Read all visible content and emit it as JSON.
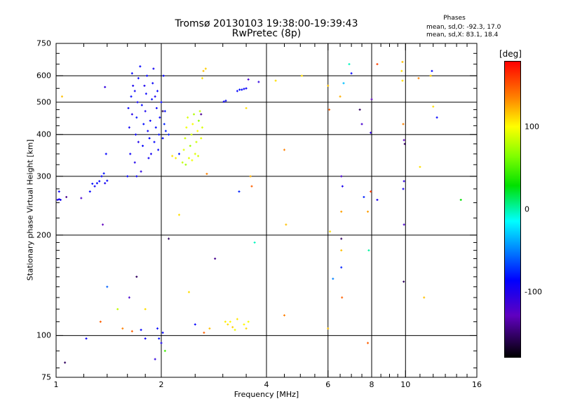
{
  "chart_data": {
    "type": "scatter",
    "title": "Tromsø 20130103 19:38:00-19:39:43",
    "subtitle": "RwPretec (8p)",
    "xlabel": "Frequency [MHz]",
    "ylabel": "Stationary phase Virtual Height [km]",
    "x_scale": "log",
    "y_scale": "log",
    "xlim": [
      1,
      16
    ],
    "ylim": [
      75,
      750
    ],
    "x_ticks": [
      {
        "value": 1,
        "label": "1"
      },
      {
        "value": 2,
        "label": "2"
      },
      {
        "value": 4,
        "label": "4"
      },
      {
        "value": 6,
        "label": "6"
      },
      {
        "value": 8,
        "label": "8"
      },
      {
        "value": 10,
        "label": "10"
      },
      {
        "value": 16,
        "label": "16"
      }
    ],
    "y_ticks": [
      {
        "value": 75,
        "label": "75"
      },
      {
        "value": 100,
        "label": "100"
      },
      {
        "value": 200,
        "label": "200"
      },
      {
        "value": 300,
        "label": "300"
      },
      {
        "value": 400,
        "label": "400"
      },
      {
        "value": 500,
        "label": "500"
      },
      {
        "value": 600,
        "label": "600"
      },
      {
        "value": 750,
        "label": "750"
      }
    ],
    "grid_x": [
      2,
      4,
      6,
      8,
      10
    ],
    "grid_y": [
      100,
      200,
      300,
      400,
      500,
      600
    ],
    "phases": {
      "title": "Phases",
      "line1": "mean, sd,O: -92.3, 17.0",
      "line2": "mean, sd,X:  83.1, 18.4"
    },
    "colorbar": {
      "unit": "[deg]",
      "range": [
        -180,
        180
      ],
      "ticks": [
        {
          "value": 100,
          "label": "100"
        },
        {
          "value": 0,
          "label": "0"
        },
        {
          "value": -100,
          "label": "-100"
        }
      ],
      "colors": [
        "#000000",
        "#6000c0",
        "#0000ff",
        "#0080ff",
        "#00ffff",
        "#00e000",
        "#80ff00",
        "#ffff00",
        "#ff8000",
        "#ff0000"
      ]
    },
    "points": [
      {
        "x": 1.01,
        "y": 255,
        "phase": -110
      },
      {
        "x": 1.02,
        "y": 256,
        "phase": -112
      },
      {
        "x": 1.03,
        "y": 255,
        "phase": -108
      },
      {
        "x": 1.02,
        "y": 270,
        "phase": -105
      },
      {
        "x": 1.04,
        "y": 520,
        "phase": 120
      },
      {
        "x": 1.07,
        "y": 260,
        "phase": -150
      },
      {
        "x": 1.18,
        "y": 258,
        "phase": -130
      },
      {
        "x": 1.25,
        "y": 270,
        "phase": -100
      },
      {
        "x": 1.27,
        "y": 285,
        "phase": -95
      },
      {
        "x": 1.29,
        "y": 280,
        "phase": -105
      },
      {
        "x": 1.31,
        "y": 286,
        "phase": -100
      },
      {
        "x": 1.33,
        "y": 290,
        "phase": -98
      },
      {
        "x": 1.35,
        "y": 300,
        "phase": -102
      },
      {
        "x": 1.37,
        "y": 306,
        "phase": -95
      },
      {
        "x": 1.38,
        "y": 286,
        "phase": -110
      },
      {
        "x": 1.4,
        "y": 291,
        "phase": -100
      },
      {
        "x": 1.39,
        "y": 350,
        "phase": -100
      },
      {
        "x": 1.36,
        "y": 215,
        "phase": -140
      },
      {
        "x": 1.38,
        "y": 555,
        "phase": -120
      },
      {
        "x": 1.6,
        "y": 300,
        "phase": -100
      },
      {
        "x": 1.63,
        "y": 350,
        "phase": -105
      },
      {
        "x": 1.62,
        "y": 420,
        "phase": -108
      },
      {
        "x": 1.61,
        "y": 480,
        "phase": -102
      },
      {
        "x": 1.64,
        "y": 520,
        "phase": -98
      },
      {
        "x": 1.66,
        "y": 560,
        "phase": -110
      },
      {
        "x": 1.65,
        "y": 610,
        "phase": -100
      },
      {
        "x": 1.68,
        "y": 330,
        "phase": -112
      },
      {
        "x": 1.69,
        "y": 400,
        "phase": -104
      },
      {
        "x": 1.7,
        "y": 450,
        "phase": -96
      },
      {
        "x": 1.71,
        "y": 500,
        "phase": -106
      },
      {
        "x": 1.72,
        "y": 590,
        "phase": -103
      },
      {
        "x": 1.74,
        "y": 640,
        "phase": -100
      },
      {
        "x": 1.75,
        "y": 310,
        "phase": -118
      },
      {
        "x": 1.77,
        "y": 370,
        "phase": -101
      },
      {
        "x": 1.78,
        "y": 430,
        "phase": -97
      },
      {
        "x": 1.8,
        "y": 470,
        "phase": -109
      },
      {
        "x": 1.81,
        "y": 530,
        "phase": -102
      },
      {
        "x": 1.82,
        "y": 600,
        "phase": -99
      },
      {
        "x": 1.84,
        "y": 340,
        "phase": -107
      },
      {
        "x": 1.85,
        "y": 390,
        "phase": -100
      },
      {
        "x": 1.86,
        "y": 440,
        "phase": -105
      },
      {
        "x": 1.88,
        "y": 510,
        "phase": -95
      },
      {
        "x": 1.89,
        "y": 570,
        "phase": -103
      },
      {
        "x": 1.9,
        "y": 630,
        "phase": -108
      },
      {
        "x": 1.91,
        "y": 380,
        "phase": -100
      },
      {
        "x": 1.93,
        "y": 420,
        "phase": -98
      },
      {
        "x": 1.94,
        "y": 480,
        "phase": -104
      },
      {
        "x": 1.95,
        "y": 540,
        "phase": -100
      },
      {
        "x": 1.97,
        "y": 400,
        "phase": -96
      },
      {
        "x": 1.98,
        "y": 450,
        "phase": -102
      },
      {
        "x": 2.0,
        "y": 500,
        "phase": -100
      },
      {
        "x": 2.02,
        "y": 390,
        "phase": -97
      },
      {
        "x": 2.04,
        "y": 430,
        "phase": -90
      },
      {
        "x": 2.05,
        "y": 470,
        "phase": -95
      },
      {
        "x": 2.06,
        "y": 410,
        "phase": -92
      },
      {
        "x": 2.03,
        "y": 600,
        "phase": -100
      },
      {
        "x": 1.65,
        "y": 460,
        "phase": -115
      },
      {
        "x": 1.72,
        "y": 380,
        "phase": -112
      },
      {
        "x": 1.79,
        "y": 560,
        "phase": -110
      },
      {
        "x": 1.87,
        "y": 350,
        "phase": -108
      },
      {
        "x": 1.92,
        "y": 520,
        "phase": -112
      },
      {
        "x": 1.68,
        "y": 540,
        "phase": -106
      },
      {
        "x": 1.83,
        "y": 410,
        "phase": -104
      },
      {
        "x": 1.76,
        "y": 490,
        "phase": -100
      },
      {
        "x": 1.96,
        "y": 360,
        "phase": -101
      },
      {
        "x": 1.7,
        "y": 300,
        "phase": -103
      },
      {
        "x": 2.02,
        "y": 470,
        "phase": -160
      },
      {
        "x": 2.1,
        "y": 400,
        "phase": -90
      },
      {
        "x": 2.15,
        "y": 345,
        "phase": 110
      },
      {
        "x": 2.2,
        "y": 340,
        "phase": 105
      },
      {
        "x": 2.25,
        "y": 350,
        "phase": -95
      },
      {
        "x": 2.3,
        "y": 330,
        "phase": 80
      },
      {
        "x": 2.32,
        "y": 360,
        "phase": 90
      },
      {
        "x": 2.34,
        "y": 390,
        "phase": 85
      },
      {
        "x": 2.36,
        "y": 420,
        "phase": 95
      },
      {
        "x": 2.38,
        "y": 450,
        "phase": 88
      },
      {
        "x": 2.4,
        "y": 340,
        "phase": 92
      },
      {
        "x": 2.42,
        "y": 370,
        "phase": 70
      },
      {
        "x": 2.44,
        "y": 400,
        "phase": 86
      },
      {
        "x": 2.46,
        "y": 430,
        "phase": 98
      },
      {
        "x": 2.48,
        "y": 460,
        "phase": 75
      },
      {
        "x": 2.5,
        "y": 350,
        "phase": 90
      },
      {
        "x": 2.52,
        "y": 380,
        "phase": 84
      },
      {
        "x": 2.54,
        "y": 410,
        "phase": 100
      },
      {
        "x": 2.56,
        "y": 440,
        "phase": 65
      },
      {
        "x": 2.58,
        "y": 470,
        "phase": 80
      },
      {
        "x": 2.6,
        "y": 390,
        "phase": 92
      },
      {
        "x": 2.62,
        "y": 420,
        "phase": 88
      },
      {
        "x": 2.35,
        "y": 325,
        "phase": 72
      },
      {
        "x": 2.45,
        "y": 335,
        "phase": 95
      },
      {
        "x": 2.55,
        "y": 345,
        "phase": 86
      },
      {
        "x": 2.6,
        "y": 460,
        "phase": -150
      },
      {
        "x": 2.64,
        "y": 620,
        "phase": 120
      },
      {
        "x": 2.68,
        "y": 630,
        "phase": 115
      },
      {
        "x": 2.7,
        "y": 305,
        "phase": 140
      },
      {
        "x": 2.62,
        "y": 590,
        "phase": 110
      },
      {
        "x": 3.02,
        "y": 502,
        "phase": -105
      },
      {
        "x": 3.06,
        "y": 505,
        "phase": -100
      },
      {
        "x": 3.3,
        "y": 540,
        "phase": -100
      },
      {
        "x": 3.35,
        "y": 545,
        "phase": -95
      },
      {
        "x": 3.4,
        "y": 545,
        "phase": -98
      },
      {
        "x": 3.45,
        "y": 548,
        "phase": -102
      },
      {
        "x": 3.5,
        "y": 550,
        "phase": -105
      },
      {
        "x": 3.55,
        "y": 585,
        "phase": -130
      },
      {
        "x": 3.5,
        "y": 480,
        "phase": 110
      },
      {
        "x": 3.6,
        "y": 300,
        "phase": 125
      },
      {
        "x": 3.63,
        "y": 280,
        "phase": 150
      },
      {
        "x": 3.34,
        "y": 270,
        "phase": -90
      },
      {
        "x": 3.7,
        "y": 190,
        "phase": -10
      },
      {
        "x": 3.8,
        "y": 575,
        "phase": -120
      },
      {
        "x": 2.25,
        "y": 230,
        "phase": 110
      },
      {
        "x": 2.1,
        "y": 195,
        "phase": -160
      },
      {
        "x": 2.85,
        "y": 170,
        "phase": -150
      },
      {
        "x": 2.4,
        "y": 135,
        "phase": 110
      },
      {
        "x": 3.05,
        "y": 110,
        "phase": 105
      },
      {
        "x": 3.1,
        "y": 108,
        "phase": 110
      },
      {
        "x": 3.15,
        "y": 110,
        "phase": 100
      },
      {
        "x": 3.2,
        "y": 106,
        "phase": 115
      },
      {
        "x": 3.25,
        "y": 104,
        "phase": 95
      },
      {
        "x": 3.3,
        "y": 112,
        "phase": 108
      },
      {
        "x": 3.45,
        "y": 108,
        "phase": 102
      },
      {
        "x": 3.5,
        "y": 105,
        "phase": 112
      },
      {
        "x": 3.55,
        "y": 110,
        "phase": 98
      },
      {
        "x": 2.75,
        "y": 105,
        "phase": 120
      },
      {
        "x": 2.65,
        "y": 102,
        "phase": 150
      },
      {
        "x": 2.5,
        "y": 108,
        "phase": -100
      },
      {
        "x": 1.95,
        "y": 105,
        "phase": -100
      },
      {
        "x": 1.97,
        "y": 98,
        "phase": -95
      },
      {
        "x": 2.0,
        "y": 95,
        "phase": -110
      },
      {
        "x": 2.02,
        "y": 102,
        "phase": -100
      },
      {
        "x": 2.05,
        "y": 90,
        "phase": 40
      },
      {
        "x": 1.92,
        "y": 85,
        "phase": -120
      },
      {
        "x": 1.8,
        "y": 98,
        "phase": -105
      },
      {
        "x": 1.75,
        "y": 104,
        "phase": -100
      },
      {
        "x": 1.65,
        "y": 103,
        "phase": 150
      },
      {
        "x": 1.55,
        "y": 105,
        "phase": 140
      },
      {
        "x": 1.22,
        "y": 98,
        "phase": -105
      },
      {
        "x": 1.34,
        "y": 110,
        "phase": 150
      },
      {
        "x": 1.4,
        "y": 140,
        "phase": -70
      },
      {
        "x": 1.5,
        "y": 120,
        "phase": 80
      },
      {
        "x": 1.62,
        "y": 130,
        "phase": -130
      },
      {
        "x": 1.7,
        "y": 150,
        "phase": -160
      },
      {
        "x": 1.8,
        "y": 120,
        "phase": 110
      },
      {
        "x": 1.06,
        "y": 83,
        "phase": -160
      },
      {
        "x": 4.25,
        "y": 580,
        "phase": 110
      },
      {
        "x": 4.5,
        "y": 360,
        "phase": 140
      },
      {
        "x": 4.55,
        "y": 215,
        "phase": 120
      },
      {
        "x": 4.5,
        "y": 115,
        "phase": 140
      },
      {
        "x": 5.05,
        "y": 600,
        "phase": 110
      },
      {
        "x": 6.0,
        "y": 560,
        "phase": 120
      },
      {
        "x": 6.05,
        "y": 475,
        "phase": 150
      },
      {
        "x": 6.08,
        "y": 205,
        "phase": 110
      },
      {
        "x": 6.0,
        "y": 105,
        "phase": 120
      },
      {
        "x": 6.2,
        "y": 148,
        "phase": -60
      },
      {
        "x": 6.5,
        "y": 520,
        "phase": 125
      },
      {
        "x": 6.55,
        "y": 300,
        "phase": -130
      },
      {
        "x": 6.6,
        "y": 280,
        "phase": -110
      },
      {
        "x": 6.55,
        "y": 235,
        "phase": 130
      },
      {
        "x": 6.55,
        "y": 195,
        "phase": -160
      },
      {
        "x": 6.55,
        "y": 180,
        "phase": 120
      },
      {
        "x": 6.55,
        "y": 160,
        "phase": -90
      },
      {
        "x": 6.58,
        "y": 130,
        "phase": 150
      },
      {
        "x": 6.65,
        "y": 570,
        "phase": -40
      },
      {
        "x": 6.9,
        "y": 650,
        "phase": -10
      },
      {
        "x": 7.0,
        "y": 610,
        "phase": -100
      },
      {
        "x": 7.4,
        "y": 475,
        "phase": -160
      },
      {
        "x": 7.5,
        "y": 430,
        "phase": -130
      },
      {
        "x": 7.6,
        "y": 260,
        "phase": -90
      },
      {
        "x": 7.8,
        "y": 235,
        "phase": 130
      },
      {
        "x": 7.8,
        "y": 95,
        "phase": 150
      },
      {
        "x": 7.85,
        "y": 180,
        "phase": -5
      },
      {
        "x": 8.0,
        "y": 510,
        "phase": -140
      },
      {
        "x": 7.95,
        "y": 405,
        "phase": -120
      },
      {
        "x": 7.95,
        "y": 270,
        "phase": 160
      },
      {
        "x": 8.3,
        "y": 255,
        "phase": -110
      },
      {
        "x": 8.3,
        "y": 650,
        "phase": 160
      },
      {
        "x": 9.8,
        "y": 580,
        "phase": 110
      },
      {
        "x": 9.85,
        "y": 430,
        "phase": 140
      },
      {
        "x": 9.9,
        "y": 385,
        "phase": -140
      },
      {
        "x": 9.95,
        "y": 375,
        "phase": -160
      },
      {
        "x": 9.9,
        "y": 290,
        "phase": -120
      },
      {
        "x": 9.85,
        "y": 275,
        "phase": -110
      },
      {
        "x": 9.9,
        "y": 215,
        "phase": -130
      },
      {
        "x": 9.88,
        "y": 145,
        "phase": -160
      },
      {
        "x": 9.8,
        "y": 660,
        "phase": 120
      },
      {
        "x": 9.75,
        "y": 620,
        "phase": 110
      },
      {
        "x": 10.9,
        "y": 590,
        "phase": 140
      },
      {
        "x": 11.0,
        "y": 320,
        "phase": 110
      },
      {
        "x": 11.3,
        "y": 130,
        "phase": 120
      },
      {
        "x": 11.8,
        "y": 600,
        "phase": 115
      },
      {
        "x": 11.9,
        "y": 620,
        "phase": -100
      },
      {
        "x": 12.0,
        "y": 485,
        "phase": 110
      },
      {
        "x": 12.3,
        "y": 450,
        "phase": -100
      },
      {
        "x": 14.4,
        "y": 255,
        "phase": 20
      }
    ]
  }
}
